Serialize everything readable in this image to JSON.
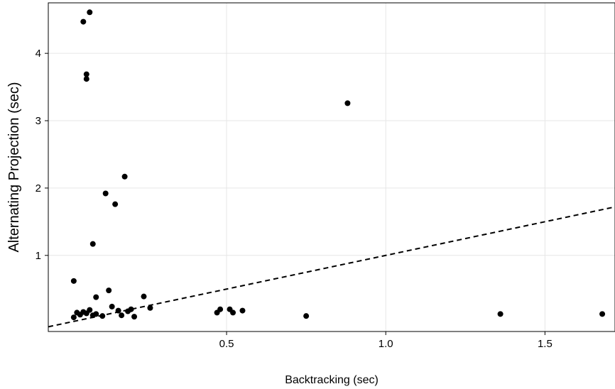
{
  "chart_data": {
    "type": "scatter",
    "title": "",
    "xlabel": "Backtracking (sec)",
    "ylabel": "Alternating Projection (sec)",
    "xlim": [
      -0.06,
      1.72
    ],
    "ylim": [
      -0.13,
      4.75
    ],
    "x_ticks": [
      0.5,
      1.0,
      1.5
    ],
    "x_tick_labels": [
      "0.5",
      "1.0",
      "1.5"
    ],
    "y_ticks": [
      1,
      2,
      3,
      4
    ],
    "y_tick_labels": [
      "1",
      "2",
      "3",
      "4"
    ],
    "grid": true,
    "reference_line": {
      "style": "dashed",
      "slope": 1,
      "intercept": 0
    },
    "points": [
      {
        "x": 0.05,
        "y": 4.47
      },
      {
        "x": 0.07,
        "y": 4.61
      },
      {
        "x": 0.06,
        "y": 3.69
      },
      {
        "x": 0.06,
        "y": 3.62
      },
      {
        "x": 0.88,
        "y": 3.26
      },
      {
        "x": 0.18,
        "y": 2.17
      },
      {
        "x": 0.15,
        "y": 1.76
      },
      {
        "x": 0.12,
        "y": 1.92
      },
      {
        "x": 0.08,
        "y": 1.17
      },
      {
        "x": 0.02,
        "y": 0.62
      },
      {
        "x": 0.13,
        "y": 0.48
      },
      {
        "x": 0.09,
        "y": 0.38
      },
      {
        "x": 0.24,
        "y": 0.39
      },
      {
        "x": 0.14,
        "y": 0.24
      },
      {
        "x": 0.26,
        "y": 0.22
      },
      {
        "x": 0.16,
        "y": 0.18
      },
      {
        "x": 0.19,
        "y": 0.17
      },
      {
        "x": 0.2,
        "y": 0.2
      },
      {
        "x": 0.21,
        "y": 0.09
      },
      {
        "x": 0.17,
        "y": 0.11
      },
      {
        "x": 0.11,
        "y": 0.1
      },
      {
        "x": 0.02,
        "y": 0.08
      },
      {
        "x": 0.03,
        "y": 0.15
      },
      {
        "x": 0.04,
        "y": 0.12
      },
      {
        "x": 0.05,
        "y": 0.16
      },
      {
        "x": 0.06,
        "y": 0.14
      },
      {
        "x": 0.07,
        "y": 0.19
      },
      {
        "x": 0.08,
        "y": 0.11
      },
      {
        "x": 0.09,
        "y": 0.13
      },
      {
        "x": 0.47,
        "y": 0.15
      },
      {
        "x": 0.48,
        "y": 0.2
      },
      {
        "x": 0.51,
        "y": 0.2
      },
      {
        "x": 0.52,
        "y": 0.15
      },
      {
        "x": 0.55,
        "y": 0.18
      },
      {
        "x": 0.75,
        "y": 0.1
      },
      {
        "x": 1.36,
        "y": 0.13
      },
      {
        "x": 1.68,
        "y": 0.13
      }
    ]
  }
}
